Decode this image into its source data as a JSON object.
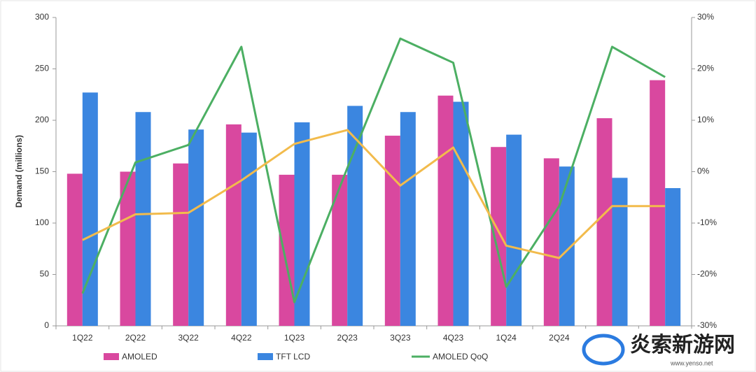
{
  "chart_data": {
    "type": "bar-line",
    "y_label": "Demand (millions)",
    "categories": [
      "1Q22",
      "2Q22",
      "3Q22",
      "4Q22",
      "1Q23",
      "2Q23",
      "3Q23",
      "4Q23",
      "1Q24",
      "2Q24",
      null,
      null
    ],
    "series": [
      {
        "name": "AMOLED",
        "type": "bar",
        "color": "#d9489f",
        "values": [
          148,
          150,
          158,
          196,
          147,
          147,
          185,
          224,
          174,
          163,
          202,
          239
        ]
      },
      {
        "name": "TFT LCD",
        "type": "bar",
        "color": "#3b86e0",
        "values": [
          227,
          208,
          191,
          188,
          198,
          214,
          208,
          218,
          186,
          155,
          144,
          134
        ]
      },
      {
        "name": "AMOLED QoQ",
        "type": "line",
        "axis": "y2",
        "color": "#4caf63",
        "values": [
          -23.7,
          1.8,
          5.2,
          24.3,
          -25.4,
          0.7,
          25.9,
          21.2,
          -22.4,
          -6.7,
          24.3,
          18.4
        ]
      },
      {
        "type": "line",
        "axis": "y2",
        "color": "#f2bb4c",
        "values": [
          -13.3,
          -8.3,
          -8.0,
          -1.7,
          5.4,
          8.1,
          -2.7,
          4.7,
          -14.4,
          -16.8,
          -6.7,
          -6.7
        ]
      }
    ],
    "ylim": [
      0,
      300
    ],
    "yticks": [
      0,
      50,
      100,
      150,
      200,
      250,
      300
    ],
    "y2lim": [
      -30,
      30
    ],
    "y2ticks": [
      {
        "value": -30,
        "label": "-30%"
      },
      {
        "value": -20,
        "label": "-20%"
      },
      {
        "value": -10,
        "label": "-10%"
      },
      {
        "value": 0,
        "label": "0%"
      },
      {
        "value": 10,
        "label": "10%"
      },
      {
        "value": 20,
        "label": "20%"
      },
      {
        "value": 30,
        "label": "30%"
      }
    ],
    "legend": "bottom",
    "grid": false
  },
  "watermark": {
    "title": "炎索新游网",
    "url": "www.yenso.net"
  }
}
